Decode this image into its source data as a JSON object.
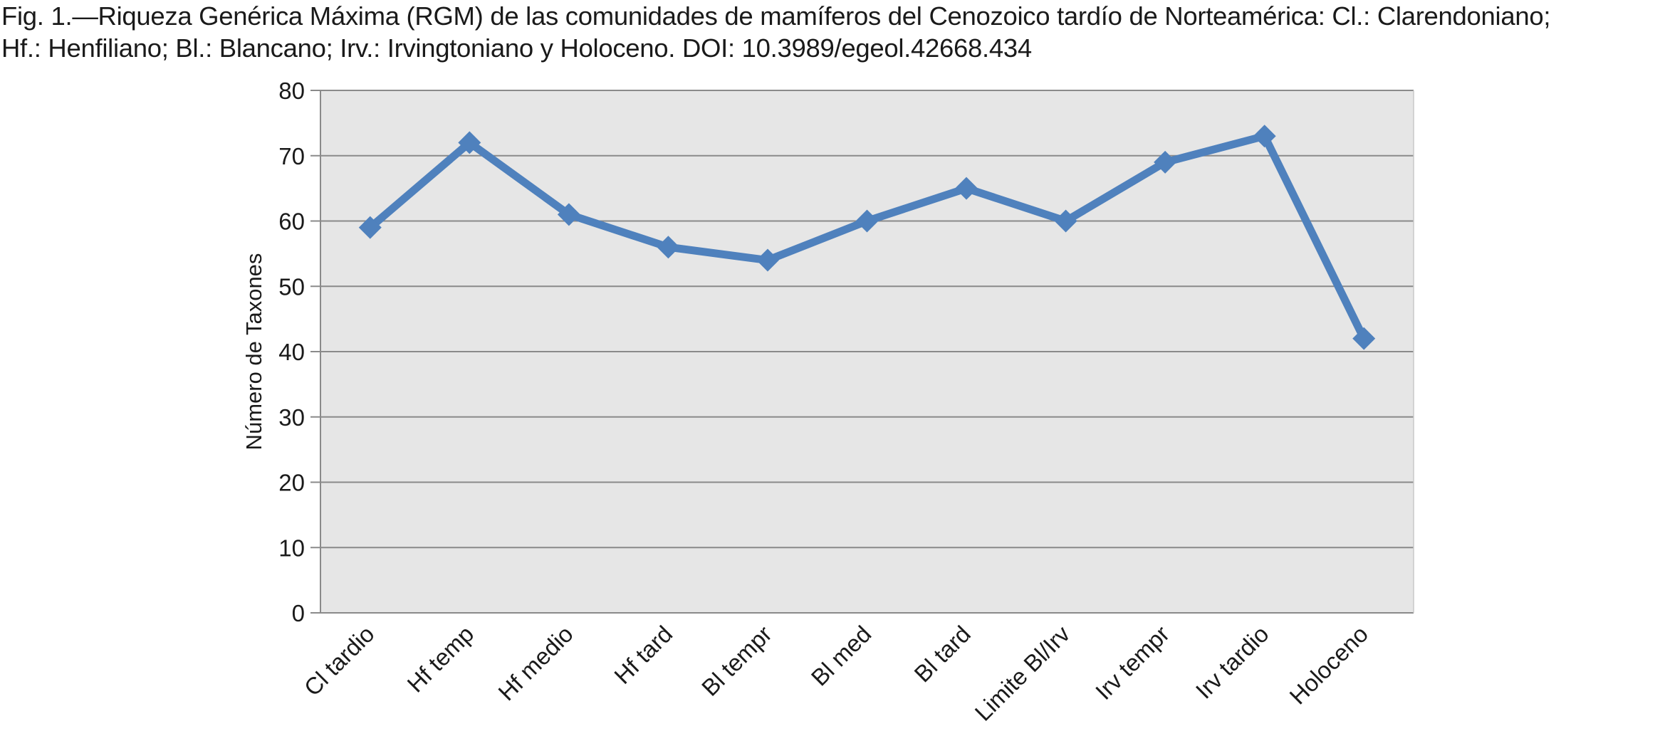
{
  "caption": {
    "line1": "Fig. 1.—Riqueza Genérica Máxima (RGM) de las comunidades de mamíferos del Cenozoico tardío de Norteamérica: Cl.: Clarendoniano;",
    "line2": "Hf.: Henfiliano; Bl.: Blancano; Irv.: Irvingtoniano y Holoceno. DOI: 10.3989/egeol.42668.434"
  },
  "chart_data": {
    "type": "line",
    "title": "",
    "xlabel": "",
    "ylabel": "Número de Taxones",
    "categories": [
      "Cl tardio",
      "Hf temp",
      "Hf medio",
      "Hf tard",
      "Bl tempr",
      "Bl med",
      "Bl tard",
      "Limite Bl/Irv",
      "Irv tempr",
      "Irv tardio",
      "Holoceno"
    ],
    "series": [
      {
        "values": [
          59,
          72,
          61,
          56,
          54,
          60,
          65,
          60,
          69,
          73,
          42
        ]
      }
    ],
    "ylim": [
      0,
      80
    ],
    "yticks": [
      0,
      10,
      20,
      30,
      40,
      50,
      60,
      70,
      80
    ],
    "grid": true,
    "legend": "none",
    "marker": "diamond",
    "colors": {
      "line": "#4f81bd",
      "plot_background": "#e6e6e6",
      "gridline": "#8a8a8a"
    }
  }
}
